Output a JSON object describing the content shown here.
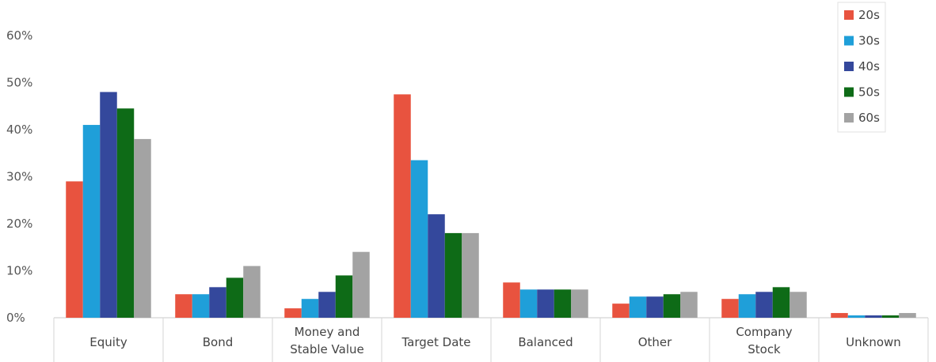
{
  "chart_data": {
    "type": "bar",
    "categories": [
      [
        "Equity"
      ],
      [
        "Bond"
      ],
      [
        "Money and",
        "Stable Value"
      ],
      [
        "Target Date"
      ],
      [
        "Balanced"
      ],
      [
        "Other"
      ],
      [
        "Company",
        "Stock"
      ],
      [
        "Unknown"
      ]
    ],
    "series": [
      {
        "name": "20s",
        "color": "#e8533f",
        "values": [
          29,
          5,
          2,
          47.5,
          7.5,
          3,
          4,
          1
        ]
      },
      {
        "name": "30s",
        "color": "#1f9fd9",
        "values": [
          41,
          5,
          4,
          33.5,
          6,
          4.5,
          5,
          0.5
        ]
      },
      {
        "name": "40s",
        "color": "#34489c",
        "values": [
          48,
          6.5,
          5.5,
          22,
          6,
          4.5,
          5.5,
          0.5
        ]
      },
      {
        "name": "50s",
        "color": "#0e6b17",
        "values": [
          44.5,
          8.5,
          9,
          18,
          6,
          5,
          6.5,
          0.5
        ]
      },
      {
        "name": "60s",
        "color": "#a3a3a3",
        "values": [
          38,
          11,
          14,
          18,
          6,
          5.5,
          5.5,
          1
        ]
      }
    ],
    "yticks": [
      "0%",
      "10%",
      "20%",
      "30%",
      "40%",
      "50%",
      "60%"
    ],
    "ylim": [
      0,
      60
    ],
    "grid": false,
    "legend": "top-right",
    "title": "",
    "xlabel": "",
    "ylabel": ""
  }
}
